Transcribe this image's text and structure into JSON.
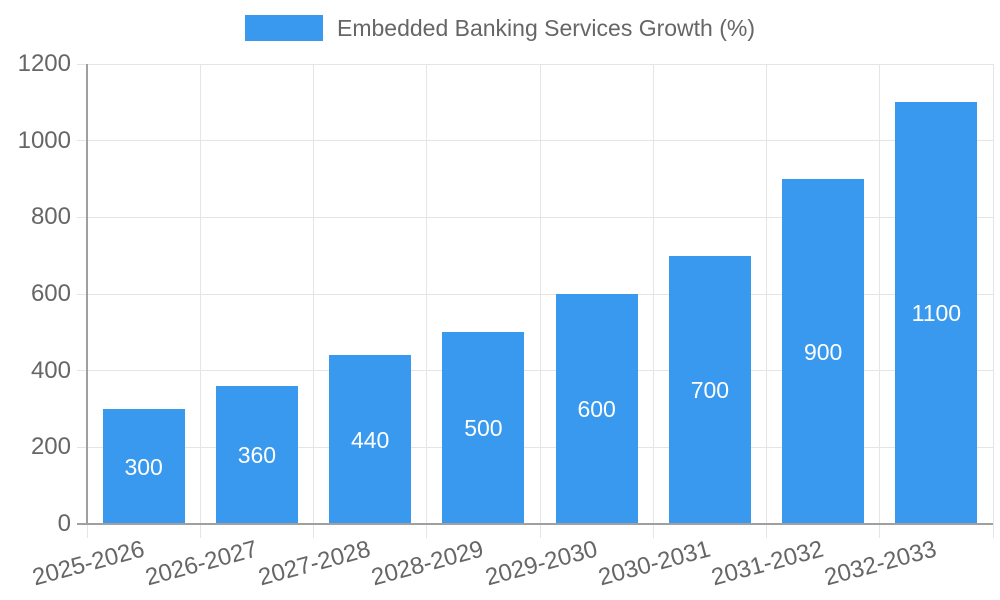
{
  "chart_data": {
    "type": "bar",
    "title": "",
    "legend": "Embedded Banking Services Growth (%)",
    "legend_position": "top",
    "categories": [
      "2025-2026",
      "2026-2027",
      "2027-2028",
      "2028-2029",
      "2029-2030",
      "2030-2031",
      "2031-2032",
      "2032-2033"
    ],
    "values": [
      300,
      360,
      440,
      500,
      600,
      700,
      900,
      1100
    ],
    "bar_labels": [
      "300",
      "360",
      "440",
      "500",
      "600",
      "700",
      "900",
      "1100"
    ],
    "y_ticks": [
      0,
      200,
      400,
      600,
      800,
      1000,
      1200
    ],
    "ylim": [
      0,
      1200
    ],
    "xlabel": "",
    "ylabel": "",
    "grid": true,
    "colors": {
      "bar": "#3899ee",
      "bar_label": "#ffffff",
      "tick_text": "#666666",
      "legend_text": "#666666",
      "gridline": "#e5e5e5",
      "axis_border": "#a0a0a0"
    }
  }
}
